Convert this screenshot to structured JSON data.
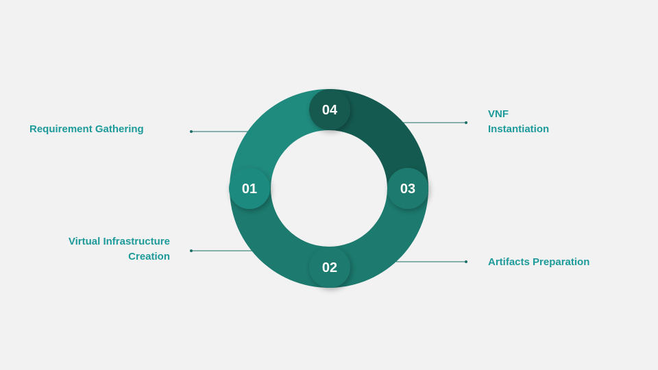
{
  "colors": {
    "background": "#f2f2f2",
    "label_text": "#1e9a9a",
    "ring_light": "#1f8a7e",
    "ring_mid": "#1c7a6e",
    "ring_dark": "#145a50",
    "connector": "#1b6f66"
  },
  "steps": [
    {
      "number": "01",
      "label_lines": [
        "Requirement Gathering"
      ]
    },
    {
      "number": "02",
      "label_lines": [
        "Virtual Infrastructure",
        "Creation"
      ]
    },
    {
      "number": "03",
      "label_lines": [
        "Artifacts Preparation"
      ]
    },
    {
      "number": "04",
      "label_lines": [
        "VNF",
        "Instantiation"
      ]
    }
  ]
}
